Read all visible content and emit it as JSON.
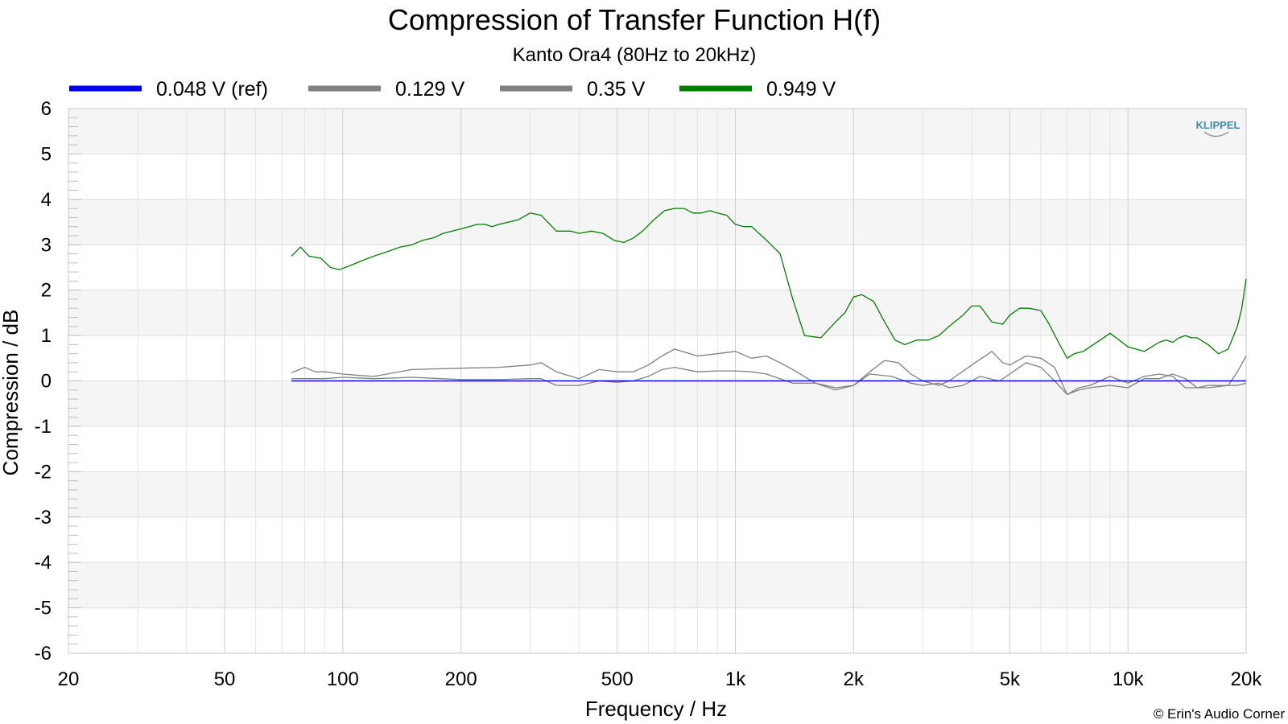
{
  "chart_data": {
    "type": "line",
    "title": "Compression of Transfer Function H(f)",
    "subtitle": "Kanto Ora4 (80Hz to 20kHz)",
    "xlabel": "Frequency / Hz",
    "ylabel": "Compression / dB",
    "xscale": "log",
    "xlim": [
      20,
      20000
    ],
    "ylim": [
      -6,
      6
    ],
    "x_ticks": [
      20,
      50,
      100,
      200,
      500,
      1000,
      2000,
      5000,
      10000,
      20000
    ],
    "x_tick_labels": [
      "20",
      "50",
      "100",
      "200",
      "500",
      "1k",
      "2k",
      "5k",
      "10k",
      "20k"
    ],
    "y_ticks": [
      -6,
      -5,
      -4,
      -3,
      -2,
      -1,
      0,
      1,
      2,
      3,
      4,
      5,
      6
    ],
    "grid": true,
    "legend_position": "top",
    "logo": "KLIPPEL",
    "credit": "© Erin's Audio Corner",
    "series": [
      {
        "name": "0.048 V (ref)",
        "color": "#0000ee",
        "x": [
          74,
          20000
        ],
        "y": [
          0,
          0
        ]
      },
      {
        "name": "0.129 V",
        "color": "#808080",
        "x": [
          74,
          80,
          90,
          100,
          120,
          150,
          200,
          250,
          300,
          320,
          350,
          400,
          450,
          500,
          550,
          600,
          650,
          700,
          800,
          900,
          1000,
          1100,
          1200,
          1400,
          1600,
          1800,
          2000,
          2200,
          2500,
          2800,
          3000,
          3300,
          3500,
          3800,
          4200,
          4700,
          5000,
          5500,
          6000,
          6500,
          7000,
          7500,
          8000,
          9000,
          10000,
          11000,
          12000,
          13000,
          14000,
          15000,
          16000,
          18000,
          19000,
          20000
        ],
        "y": [
          0.05,
          0.05,
          0.05,
          0.08,
          0.05,
          0.08,
          0.03,
          0.03,
          0.05,
          0.05,
          -0.1,
          -0.1,
          0.0,
          -0.03,
          0.0,
          0.1,
          0.25,
          0.3,
          0.2,
          0.22,
          0.22,
          0.2,
          0.15,
          -0.05,
          -0.05,
          -0.2,
          -0.1,
          0.15,
          0.1,
          -0.05,
          -0.1,
          -0.05,
          -0.15,
          -0.1,
          0.1,
          0.0,
          0.15,
          0.4,
          0.3,
          0.0,
          -0.3,
          -0.2,
          -0.15,
          -0.1,
          -0.15,
          0.05,
          0.05,
          0.15,
          0.05,
          -0.15,
          -0.1,
          -0.1,
          -0.1,
          -0.05
        ]
      },
      {
        "name": "0.35 V",
        "color": "#808080",
        "x": [
          74,
          80,
          85,
          90,
          100,
          110,
          120,
          150,
          200,
          250,
          300,
          320,
          350,
          400,
          450,
          500,
          550,
          600,
          650,
          700,
          800,
          900,
          1000,
          1100,
          1200,
          1300,
          1400,
          1600,
          1800,
          2000,
          2200,
          2400,
          2600,
          2800,
          3000,
          3300,
          3500,
          4000,
          4500,
          4800,
          5000,
          5500,
          6000,
          6500,
          7000,
          7500,
          8000,
          9000,
          10000,
          11000,
          12000,
          13000,
          14000,
          16000,
          18000,
          19000,
          20000
        ],
        "y": [
          0.18,
          0.3,
          0.2,
          0.2,
          0.15,
          0.12,
          0.1,
          0.25,
          0.28,
          0.3,
          0.35,
          0.4,
          0.2,
          0.05,
          0.25,
          0.2,
          0.2,
          0.35,
          0.55,
          0.7,
          0.55,
          0.6,
          0.65,
          0.5,
          0.55,
          0.4,
          0.25,
          -0.05,
          -0.15,
          -0.1,
          0.2,
          0.45,
          0.4,
          0.15,
          0.0,
          -0.1,
          0.0,
          0.35,
          0.65,
          0.4,
          0.35,
          0.55,
          0.5,
          0.3,
          -0.3,
          -0.15,
          -0.1,
          0.1,
          -0.05,
          0.1,
          0.15,
          0.1,
          -0.15,
          -0.15,
          -0.1,
          0.2,
          0.55
        ]
      },
      {
        "name": "0.949 V",
        "color": "#008000",
        "x": [
          74,
          78,
          82,
          88,
          93,
          98,
          105,
          112,
          120,
          130,
          140,
          150,
          160,
          170,
          180,
          190,
          200,
          210,
          220,
          230,
          240,
          250,
          280,
          300,
          320,
          350,
          380,
          400,
          430,
          460,
          490,
          520,
          550,
          580,
          620,
          660,
          700,
          740,
          780,
          820,
          860,
          900,
          950,
          1000,
          1050,
          1100,
          1200,
          1300,
          1400,
          1500,
          1650,
          1800,
          1900,
          2000,
          2100,
          2250,
          2400,
          2550,
          2700,
          2900,
          3100,
          3300,
          3500,
          3800,
          4000,
          4200,
          4500,
          4800,
          5000,
          5300,
          5600,
          6000,
          6300,
          6700,
          7000,
          7300,
          7700,
          8000,
          8500,
          9000,
          9500,
          10000,
          10500,
          11000,
          11500,
          12000,
          12500,
          13000,
          13500,
          14000,
          14500,
          15000,
          16000,
          17000,
          18000,
          19000,
          19500,
          20000
        ],
        "y": [
          2.75,
          2.95,
          2.75,
          2.7,
          2.5,
          2.45,
          2.55,
          2.65,
          2.75,
          2.85,
          2.95,
          3.0,
          3.1,
          3.15,
          3.25,
          3.3,
          3.35,
          3.4,
          3.45,
          3.45,
          3.4,
          3.45,
          3.55,
          3.7,
          3.65,
          3.3,
          3.3,
          3.25,
          3.3,
          3.25,
          3.1,
          3.05,
          3.15,
          3.3,
          3.55,
          3.75,
          3.8,
          3.8,
          3.7,
          3.7,
          3.75,
          3.7,
          3.65,
          3.45,
          3.4,
          3.4,
          3.1,
          2.8,
          1.8,
          1.0,
          0.95,
          1.3,
          1.5,
          1.85,
          1.9,
          1.75,
          1.3,
          0.9,
          0.8,
          0.9,
          0.9,
          1.0,
          1.2,
          1.45,
          1.65,
          1.65,
          1.3,
          1.25,
          1.45,
          1.6,
          1.6,
          1.55,
          1.25,
          0.8,
          0.5,
          0.6,
          0.65,
          0.75,
          0.9,
          1.05,
          0.9,
          0.75,
          0.7,
          0.65,
          0.75,
          0.85,
          0.9,
          0.85,
          0.95,
          1.0,
          0.95,
          0.95,
          0.8,
          0.6,
          0.7,
          1.2,
          1.6,
          2.25
        ]
      }
    ]
  }
}
